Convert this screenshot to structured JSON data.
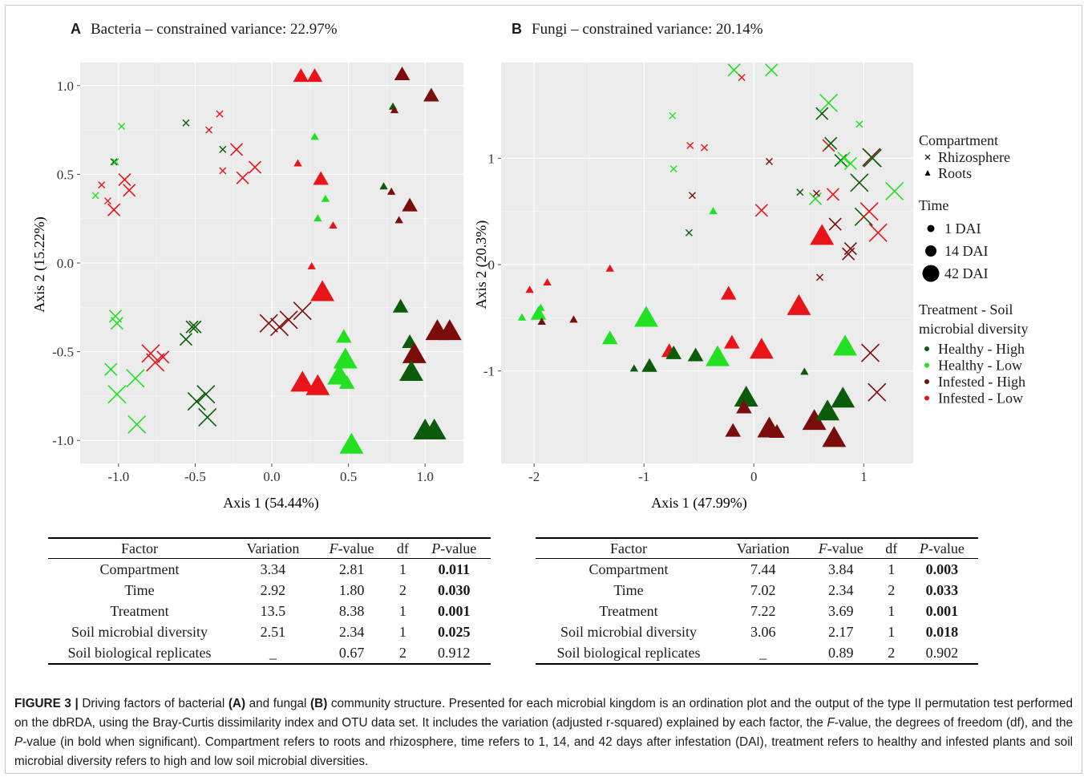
{
  "panel_a": {
    "letter": "A",
    "title": "Bacteria – constrained variance: 22.97%",
    "xlabel": "Axis 1 (54.44%)",
    "ylabel": "Axis 2 (15.22%)"
  },
  "panel_b": {
    "letter": "B",
    "title": "Fungi – constrained variance: 20.14%",
    "xlabel": "Axis 1 (47.99%)",
    "ylabel": "Axis 2 (20.3%)"
  },
  "legend": {
    "compartment_title": "Compartment",
    "compartment_items": [
      {
        "label": "Rhizosphere",
        "shape": "cross"
      },
      {
        "label": "Roots",
        "shape": "triangle"
      }
    ],
    "time_title": "Time",
    "time_items": [
      {
        "label": "1 DAI",
        "size": 1
      },
      {
        "label": "14 DAI",
        "size": 2
      },
      {
        "label": "42 DAI",
        "size": 3
      }
    ],
    "treatment_title_line1": "Treatment - Soil",
    "treatment_title_line2": "microbial diversity",
    "treatment_items": [
      {
        "label": "Healthy - High",
        "color": "#0a5c0a"
      },
      {
        "label": "Healthy - Low",
        "color": "#22e022"
      },
      {
        "label": "Infested - High",
        "color": "#7b0c0c"
      },
      {
        "label": "Infested - Low",
        "color": "#e8141a"
      }
    ]
  },
  "colors": {
    "HH": "#0a5c0a",
    "HL": "#22e022",
    "IH": "#7b0c0c",
    "IL": "#e8141a",
    "panel_bg": "#ebebeb",
    "grid": "#ffffff"
  },
  "chart_data": [
    {
      "type": "scatter",
      "title": "Bacteria – constrained variance: 22.97%",
      "xlabel": "Axis 1 (54.44%)",
      "ylabel": "Axis 2 (15.22%)",
      "xlim": [
        -1.25,
        1.25
      ],
      "ylim": [
        -1.13,
        1.13
      ],
      "xticks": [
        -1.0,
        -0.5,
        0.0,
        0.5,
        1.0
      ],
      "xtick_labels": [
        "-1.0",
        "-0.5",
        "0.0",
        "0.5",
        "1.0"
      ],
      "yticks": [
        -1.0,
        -0.5,
        0.0,
        0.5,
        1.0
      ],
      "ytick_labels": [
        "-1.0",
        "-0.5",
        "0.0",
        "0.5",
        "1.0"
      ],
      "grid": true,
      "points": [
        [
          -1.15,
          0.38,
          "x",
          "HL",
          1
        ],
        [
          -1.11,
          0.44,
          "x",
          "IL",
          1
        ],
        [
          -1.07,
          0.35,
          "x",
          "IL",
          1
        ],
        [
          -1.03,
          0.57,
          "x",
          "HH",
          1
        ],
        [
          -1.02,
          0.57,
          "x",
          "HL",
          1
        ],
        [
          -0.98,
          0.77,
          "x",
          "HL",
          1
        ],
        [
          -0.96,
          0.47,
          "x",
          "IL",
          2
        ],
        [
          -0.93,
          0.41,
          "x",
          "IL",
          2
        ],
        [
          -1.03,
          0.3,
          "x",
          "IL",
          2
        ],
        [
          -0.56,
          0.79,
          "x",
          "HH",
          1
        ],
        [
          -0.41,
          0.75,
          "x",
          "IL",
          1
        ],
        [
          -0.34,
          0.84,
          "x",
          "IL",
          1
        ],
        [
          -0.32,
          0.64,
          "x",
          "HH",
          1
        ],
        [
          -0.32,
          0.52,
          "x",
          "IL",
          1
        ],
        [
          -0.23,
          0.64,
          "x",
          "IL",
          2
        ],
        [
          -0.19,
          0.48,
          "x",
          "IL",
          2
        ],
        [
          -0.11,
          0.54,
          "x",
          "IL",
          2
        ],
        [
          -1.02,
          -0.3,
          "x",
          "HL",
          2
        ],
        [
          -1.01,
          -0.34,
          "x",
          "HL",
          2
        ],
        [
          -1.05,
          -0.6,
          "x",
          "HL",
          2
        ],
        [
          -1.01,
          -0.74,
          "x",
          "HL",
          3
        ],
        [
          -0.89,
          -0.65,
          "x",
          "HL",
          3
        ],
        [
          -0.88,
          -0.91,
          "x",
          "HL",
          3
        ],
        [
          -0.79,
          -0.51,
          "x",
          "IL",
          3
        ],
        [
          -0.76,
          -0.56,
          "x",
          "IL",
          3
        ],
        [
          -0.71,
          -0.53,
          "x",
          "IL",
          2
        ],
        [
          -0.56,
          -0.43,
          "x",
          "HH",
          2
        ],
        [
          -0.52,
          -0.36,
          "x",
          "HH",
          2
        ],
        [
          -0.5,
          -0.36,
          "x",
          "HH",
          2
        ],
        [
          -0.49,
          -0.78,
          "x",
          "HH",
          3
        ],
        [
          -0.43,
          -0.74,
          "x",
          "HH",
          3
        ],
        [
          -0.42,
          -0.87,
          "x",
          "HH",
          3
        ],
        [
          -0.02,
          -0.34,
          "x",
          "IH",
          3
        ],
        [
          0.05,
          -0.36,
          "x",
          "IH",
          3
        ],
        [
          0.11,
          -0.32,
          "x",
          "IH",
          3
        ],
        [
          0.2,
          -0.27,
          "x",
          "IH",
          3
        ],
        [
          0.19,
          1.05,
          "t",
          "IL",
          2
        ],
        [
          0.28,
          1.05,
          "t",
          "IL",
          2
        ],
        [
          0.85,
          1.06,
          "t",
          "IH",
          2
        ],
        [
          1.04,
          0.94,
          "t",
          "IH",
          2
        ],
        [
          0.79,
          0.88,
          "t",
          "HH",
          1
        ],
        [
          0.8,
          0.86,
          "t",
          "IH",
          1
        ],
        [
          0.28,
          0.71,
          "t",
          "HL",
          1
        ],
        [
          0.17,
          0.56,
          "t",
          "IL",
          1
        ],
        [
          0.32,
          0.47,
          "t",
          "IL",
          2
        ],
        [
          0.73,
          0.43,
          "t",
          "HH",
          1
        ],
        [
          0.78,
          0.4,
          "t",
          "IH",
          1
        ],
        [
          0.35,
          0.36,
          "t",
          "HL",
          1
        ],
        [
          0.9,
          0.32,
          "t",
          "IH",
          2
        ],
        [
          0.3,
          0.25,
          "t",
          "HL",
          1
        ],
        [
          0.83,
          0.24,
          "t",
          "IH",
          1
        ],
        [
          0.4,
          0.21,
          "t",
          "IL",
          1
        ],
        [
          0.26,
          -0.02,
          "t",
          "IL",
          1
        ],
        [
          0.33,
          -0.17,
          "t",
          "IL",
          3
        ],
        [
          0.84,
          -0.25,
          "t",
          "HH",
          2
        ],
        [
          0.47,
          -0.42,
          "t",
          "HL",
          2
        ],
        [
          0.9,
          -0.45,
          "t",
          "HH",
          2
        ],
        [
          0.93,
          -0.52,
          "t",
          "IH",
          3
        ],
        [
          1.08,
          -0.39,
          "t",
          "IH",
          3
        ],
        [
          1.16,
          -0.39,
          "t",
          "IH",
          3
        ],
        [
          0.48,
          -0.55,
          "t",
          "HL",
          3
        ],
        [
          0.44,
          -0.64,
          "t",
          "HL",
          3
        ],
        [
          0.49,
          -0.68,
          "t",
          "HL",
          2
        ],
        [
          0.91,
          -0.62,
          "t",
          "HH",
          3
        ],
        [
          0.2,
          -0.68,
          "t",
          "IL",
          3
        ],
        [
          0.3,
          -0.7,
          "t",
          "IL",
          3
        ],
        [
          0.52,
          -1.03,
          "t",
          "HL",
          3
        ],
        [
          1.0,
          -0.95,
          "t",
          "HH",
          3
        ],
        [
          1.06,
          -0.95,
          "t",
          "HH",
          3
        ]
      ]
    },
    {
      "type": "scatter",
      "title": "Fungi – constrained variance: 20.14%",
      "xlabel": "Axis 1 (47.99%)",
      "ylabel": "Axis 2 (20.3%)",
      "xlim": [
        -2.3,
        1.45
      ],
      "ylim": [
        -1.87,
        1.9
      ],
      "xticks": [
        -2,
        -1,
        0,
        1
      ],
      "xtick_labels": [
        "-2",
        "-1",
        "0",
        "1"
      ],
      "yticks": [
        -1,
        0,
        1
      ],
      "ytick_labels": [
        "-1",
        "0",
        "1"
      ],
      "grid": true,
      "points": [
        [
          -0.18,
          1.83,
          "x",
          "HL",
          2
        ],
        [
          -0.11,
          1.76,
          "x",
          "IL",
          1
        ],
        [
          0.16,
          1.83,
          "x",
          "HL",
          2
        ],
        [
          -0.74,
          1.4,
          "x",
          "HL",
          1
        ],
        [
          -0.58,
          1.12,
          "x",
          "IL",
          1
        ],
        [
          -0.45,
          1.1,
          "x",
          "IL",
          1
        ],
        [
          -0.73,
          0.9,
          "x",
          "HL",
          1
        ],
        [
          -0.56,
          0.65,
          "x",
          "IH",
          1
        ],
        [
          -0.59,
          0.3,
          "x",
          "HH",
          1
        ],
        [
          0.14,
          0.97,
          "x",
          "IH",
          1
        ],
        [
          0.07,
          0.51,
          "x",
          "IL",
          2
        ],
        [
          0.42,
          0.68,
          "x",
          "HH",
          1
        ],
        [
          0.56,
          0.62,
          "x",
          "HL",
          2
        ],
        [
          0.62,
          1.42,
          "x",
          "HH",
          2
        ],
        [
          0.68,
          1.52,
          "x",
          "HL",
          3
        ],
        [
          0.68,
          1.12,
          "x",
          "IL",
          2
        ],
        [
          0.7,
          1.14,
          "x",
          "HH",
          2
        ],
        [
          0.79,
          0.98,
          "x",
          "HH",
          2
        ],
        [
          0.82,
          1.0,
          "x",
          "HL",
          2
        ],
        [
          0.88,
          0.95,
          "x",
          "HL",
          2
        ],
        [
          0.96,
          1.32,
          "x",
          "HL",
          1
        ],
        [
          1.07,
          1.01,
          "x",
          "IH",
          3
        ],
        [
          1.08,
          1.0,
          "x",
          "HH",
          3
        ],
        [
          0.96,
          0.77,
          "x",
          "HH",
          3
        ],
        [
          1.28,
          0.69,
          "x",
          "HL",
          3
        ],
        [
          0.72,
          0.66,
          "x",
          "IL",
          2
        ],
        [
          0.74,
          0.38,
          "x",
          "IH",
          2
        ],
        [
          1.0,
          0.45,
          "x",
          "HH",
          3
        ],
        [
          1.05,
          0.5,
          "x",
          "IL",
          3
        ],
        [
          0.86,
          0.1,
          "x",
          "IH",
          2
        ],
        [
          0.88,
          0.15,
          "x",
          "IH",
          2
        ],
        [
          1.13,
          0.3,
          "x",
          "IL",
          3
        ],
        [
          0.57,
          0.67,
          "x",
          "IH",
          1
        ],
        [
          0.6,
          -0.12,
          "x",
          "IH",
          1
        ],
        [
          1.06,
          -0.83,
          "x",
          "IH",
          3
        ],
        [
          1.12,
          -1.2,
          "x",
          "IH",
          3
        ],
        [
          -1.88,
          -0.17,
          "t",
          "IL",
          1
        ],
        [
          -2.04,
          -0.24,
          "t",
          "IL",
          1
        ],
        [
          -1.94,
          -0.41,
          "t",
          "HL",
          1
        ],
        [
          -2.11,
          -0.5,
          "t",
          "HL",
          1
        ],
        [
          -1.96,
          -0.47,
          "t",
          "HL",
          2
        ],
        [
          -1.93,
          -0.54,
          "t",
          "IH",
          1
        ],
        [
          -1.64,
          -0.52,
          "t",
          "IH",
          1
        ],
        [
          -1.31,
          -0.04,
          "t",
          "IL",
          1
        ],
        [
          -0.37,
          0.5,
          "t",
          "HL",
          1
        ],
        [
          -1.31,
          -0.7,
          "t",
          "HL",
          2
        ],
        [
          -0.98,
          -0.51,
          "t",
          "HL",
          3
        ],
        [
          -0.77,
          -0.82,
          "t",
          "IL",
          2
        ],
        [
          -0.73,
          -0.84,
          "t",
          "HH",
          2
        ],
        [
          -1.09,
          -0.98,
          "t",
          "HH",
          1
        ],
        [
          -0.95,
          -0.96,
          "t",
          "HH",
          2
        ],
        [
          -0.53,
          -0.86,
          "t",
          "HH",
          2
        ],
        [
          -0.33,
          -0.88,
          "t",
          "HL",
          3
        ],
        [
          -0.23,
          -0.28,
          "t",
          "IL",
          2
        ],
        [
          -0.2,
          -0.74,
          "t",
          "IL",
          2
        ],
        [
          0.07,
          -0.81,
          "t",
          "IL",
          3
        ],
        [
          0.41,
          -0.4,
          "t",
          "IL",
          3
        ],
        [
          0.83,
          -0.78,
          "t",
          "HL",
          3
        ],
        [
          0.46,
          -1.01,
          "t",
          "HH",
          1
        ],
        [
          0.62,
          0.26,
          "t",
          "IL",
          3
        ],
        [
          -0.07,
          -1.26,
          "t",
          "HH",
          3
        ],
        [
          -0.09,
          -1.35,
          "t",
          "IH",
          2
        ],
        [
          -0.19,
          -1.57,
          "t",
          "IH",
          2
        ],
        [
          0.14,
          -1.55,
          "t",
          "IH",
          3
        ],
        [
          0.21,
          -1.58,
          "t",
          "IH",
          2
        ],
        [
          0.55,
          -1.48,
          "t",
          "IH",
          3
        ],
        [
          0.73,
          -1.64,
          "t",
          "IH",
          3
        ],
        [
          0.67,
          -1.39,
          "t",
          "HH",
          3
        ],
        [
          0.81,
          -1.27,
          "t",
          "HH",
          3
        ]
      ]
    }
  ],
  "table_headers": [
    "Factor",
    "Variation",
    "F-value",
    "df",
    "P-value"
  ],
  "table_a": [
    {
      "factor": "Compartment",
      "variation": "3.34",
      "f": "2.81",
      "df": "1",
      "p": "0.011",
      "sig": true
    },
    {
      "factor": "Time",
      "variation": "2.92",
      "f": "1.80",
      "df": "2",
      "p": "0.030",
      "sig": true
    },
    {
      "factor": "Treatment",
      "variation": "13.5",
      "f": "8.38",
      "df": "1",
      "p": "0.001",
      "sig": true
    },
    {
      "factor": "Soil microbial diversity",
      "variation": "2.51",
      "f": "2.34",
      "df": "1",
      "p": "0.025",
      "sig": true
    },
    {
      "factor": "Soil biological replicates",
      "variation": "_",
      "f": "0.67",
      "df": "2",
      "p": "0.912",
      "sig": false
    }
  ],
  "table_b": [
    {
      "factor": "Compartment",
      "variation": "7.44",
      "f": "3.84",
      "df": "1",
      "p": "0.003",
      "sig": true
    },
    {
      "factor": "Time",
      "variation": "7.02",
      "f": "2.34",
      "df": "2",
      "p": "0.033",
      "sig": true
    },
    {
      "factor": "Treatment",
      "variation": "7.22",
      "f": "3.69",
      "df": "1",
      "p": "0.001",
      "sig": true
    },
    {
      "factor": "Soil microbial diversity",
      "variation": "3.06",
      "f": "2.17",
      "df": "1",
      "p": "0.018",
      "sig": true
    },
    {
      "factor": "Soil biological replicates",
      "variation": "_",
      "f": "0.89",
      "df": "2",
      "p": "0.902",
      "sig": false
    }
  ],
  "caption": {
    "label": "FIGURE 3 |",
    "parts": [
      {
        "t": " Driving factors of bacterial "
      },
      {
        "t": "(A)",
        "b": true
      },
      {
        "t": " and fungal "
      },
      {
        "t": "(B)",
        "b": true
      },
      {
        "t": " community structure. Presented for each microbial kingdom is an ordination plot and the output of the type II permutation test performed on the dbRDA, using the Bray-Curtis dissimilarity index and OTU data set. It includes the variation (adjusted r-squared) explained by each factor, the "
      },
      {
        "t": "F",
        "i": true
      },
      {
        "t": "-value, the degrees of freedom (df), and the "
      },
      {
        "t": "P",
        "i": true
      },
      {
        "t": "-value (in bold when significant). Compartment refers to roots and rhizosphere, time refers to 1, 14, and 42 days after infestation (DAI), treatment refers to healthy and infested plants and soil microbial diversity refers to high and low soil microbial diversities."
      }
    ]
  }
}
